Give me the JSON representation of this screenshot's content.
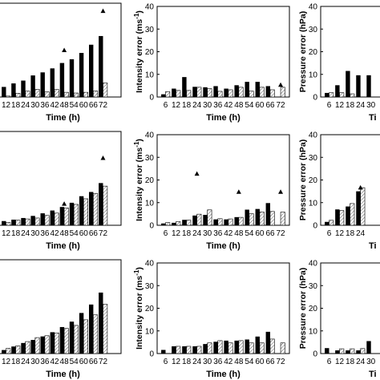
{
  "chart_data": [
    {
      "type": "bar",
      "panel": "track-1",
      "categories": [
        "12",
        "18",
        "24",
        "30",
        "36",
        "42",
        "48",
        "54",
        "60",
        "66",
        "72"
      ],
      "series": [
        {
          "values": [
            4.3,
            5.8,
            7.0,
            9.2,
            10.5,
            12.2,
            14.5,
            16.1,
            18.8,
            22.3,
            26.0
          ]
        },
        {
          "values": [
            0.4,
            1.6,
            2.5,
            3.3,
            2.2,
            3.2,
            2.0,
            1.7,
            2.0,
            2.6,
            6.0
          ]
        }
      ],
      "triangles": [
        {
          "category": "48",
          "value": 20.0
        },
        {
          "category": "72",
          "value": 36.7
        }
      ],
      "ylim": [
        0,
        40
      ],
      "yticks": [],
      "xlabel": "Time (h)",
      "ylabel": ""
    },
    {
      "type": "bar",
      "panel": "intensity-1",
      "categories": [
        "6",
        "12",
        "18",
        "24",
        "30",
        "36",
        "42",
        "48",
        "54",
        "60",
        "66",
        "72"
      ],
      "series": [
        {
          "values": [
            1.2,
            3.7,
            8.8,
            4.5,
            4.3,
            4.8,
            3.7,
            5.2,
            6.7,
            6.7,
            4.8,
            0.0
          ]
        },
        {
          "values": [
            2.4,
            2.9,
            2.9,
            4.3,
            3.7,
            2.5,
            3.2,
            4.3,
            2.6,
            4.3,
            3.2,
            4.3
          ]
        }
      ],
      "triangles": [
        {
          "category": "72",
          "value": 5.4
        }
      ],
      "ylim": [
        0,
        40
      ],
      "yticks": [
        "0",
        "10",
        "20",
        "30",
        "40"
      ],
      "xlabel": "Time (h)",
      "ylabel": "Intensity error (ms",
      "ylabel_superscript": "-1",
      "ylabel_close": ")"
    },
    {
      "type": "bar",
      "panel": "pressure-1",
      "categories": [
        "6",
        "12",
        "18",
        "24",
        "30"
      ],
      "series": [
        {
          "values": [
            1.8,
            5.2,
            11.5,
            9.6,
            9.6
          ]
        },
        {
          "values": [
            1.9,
            1.9,
            1.4,
            0.0,
            0.0
          ]
        }
      ],
      "triangles": [],
      "ylim": [
        0,
        40
      ],
      "yticks": [
        "0",
        "10",
        "20",
        "30",
        "40"
      ],
      "xlabel": "Ti",
      "ylabel": "Pressure error (hPa)"
    },
    {
      "type": "bar",
      "panel": "track-2",
      "categories": [
        "12",
        "18",
        "24",
        "30",
        "36",
        "42",
        "48",
        "54",
        "60",
        "66",
        "72"
      ],
      "series": [
        {
          "values": [
            1.8,
            2.4,
            3.1,
            4.0,
            5.1,
            6.3,
            7.8,
            9.6,
            12.4,
            14.2,
            18.0
          ]
        },
        {
          "values": [
            1.2,
            2.2,
            2.7,
            3.1,
            4.2,
            5.2,
            7.4,
            8.9,
            11.3,
            13.6,
            16.7
          ]
        }
      ],
      "triangles": [
        {
          "category": "48",
          "value": 9.2
        },
        {
          "category": "72",
          "value": 28.7
        }
      ],
      "ylim": [
        0,
        40
      ],
      "yticks": [],
      "xlabel": "Time (h)",
      "ylabel": ""
    },
    {
      "type": "bar",
      "panel": "intensity-2",
      "categories": [
        "6",
        "12",
        "18",
        "24",
        "30",
        "36",
        "42",
        "48",
        "54",
        "60",
        "66",
        "72"
      ],
      "series": [
        {
          "values": [
            0.8,
            1.1,
            2.4,
            4.3,
            4.6,
            2.6,
            2.6,
            3.6,
            6.9,
            7.2,
            9.8,
            0.0
          ]
        },
        {
          "values": [
            1.2,
            1.6,
            2.3,
            4.9,
            6.8,
            2.9,
            2.8,
            3.5,
            5.1,
            5.9,
            6.1,
            5.8
          ]
        }
      ],
      "triangles": [
        {
          "category": "24",
          "value": 22.8
        },
        {
          "category": "48",
          "value": 14.8
        },
        {
          "category": "72",
          "value": 14.8
        }
      ],
      "ylim": [
        0,
        40
      ],
      "yticks": [
        "0",
        "10",
        "20",
        "30",
        "40"
      ],
      "xlabel": "Time (h)",
      "ylabel": "Intensity error (ms",
      "ylabel_superscript": "-1",
      "ylabel_close": ")"
    },
    {
      "type": "bar",
      "panel": "pressure-2",
      "categories": [
        "6",
        "12",
        "18",
        "24"
      ],
      "series": [
        {
          "values": [
            1.5,
            7.0,
            8.3,
            15.0
          ]
        },
        {
          "values": [
            2.2,
            6.5,
            9.6,
            16.6
          ]
        }
      ],
      "triangles": [
        {
          "category": "24",
          "value": 16.7
        }
      ],
      "ylim": [
        0,
        40
      ],
      "yticks": [
        "0",
        "10",
        "20",
        "30",
        "40"
      ],
      "xlabel": "Ti",
      "ylabel": "Pressure error (hPa)"
    },
    {
      "type": "bar",
      "panel": "track-3",
      "categories": [
        "12",
        "18",
        "24",
        "30",
        "36",
        "42",
        "48",
        "54",
        "60",
        "66",
        "72"
      ],
      "series": [
        {
          "values": [
            1.5,
            3.0,
            4.5,
            5.8,
            7.3,
            9.1,
            11.3,
            13.6,
            17.3,
            20.9,
            26.0
          ]
        },
        {
          "values": [
            2.2,
            3.3,
            5.1,
            6.8,
            7.6,
            8.8,
            10.7,
            12.0,
            14.4,
            16.5,
            21.0
          ]
        }
      ],
      "triangles": [],
      "ylim": [
        0,
        40
      ],
      "yticks": [],
      "xlabel": "Time (h)",
      "ylabel": ""
    },
    {
      "type": "bar",
      "panel": "intensity-3",
      "categories": [
        "6",
        "12",
        "18",
        "24",
        "30",
        "36",
        "42",
        "48",
        "54",
        "60",
        "66",
        "72"
      ],
      "series": [
        {
          "values": [
            1.6,
            3.2,
            3.2,
            3.2,
            4.2,
            5.2,
            5.7,
            5.7,
            6.2,
            7.5,
            9.6,
            0.0
          ]
        },
        {
          "values": [
            0.0,
            3.2,
            3.2,
            3.2,
            4.7,
            5.7,
            4.7,
            5.7,
            4.7,
            4.7,
            6.4,
            4.7
          ]
        }
      ],
      "triangles": [],
      "ylim": [
        0,
        40
      ],
      "yticks": [
        "0",
        "10",
        "20",
        "30",
        "40"
      ],
      "xlabel": "Time (h)",
      "ylabel": "Intensity error (ms",
      "ylabel_superscript": "-1",
      "ylabel_close": ")"
    },
    {
      "type": "bar",
      "panel": "pressure-3",
      "categories": [
        "6",
        "12",
        "18",
        "24",
        "30"
      ],
      "series": [
        {
          "values": [
            2.4,
            1.4,
            1.4,
            1.4,
            5.5
          ]
        },
        {
          "values": [
            0.0,
            2.1,
            2.1,
            2.2,
            0.0
          ]
        }
      ],
      "triangles": [],
      "ylim": [
        0,
        40
      ],
      "yticks": [
        "0",
        "10",
        "20",
        "30",
        "40"
      ],
      "xlabel": "Ti",
      "ylabel": "Pressure error (hPa)"
    }
  ]
}
